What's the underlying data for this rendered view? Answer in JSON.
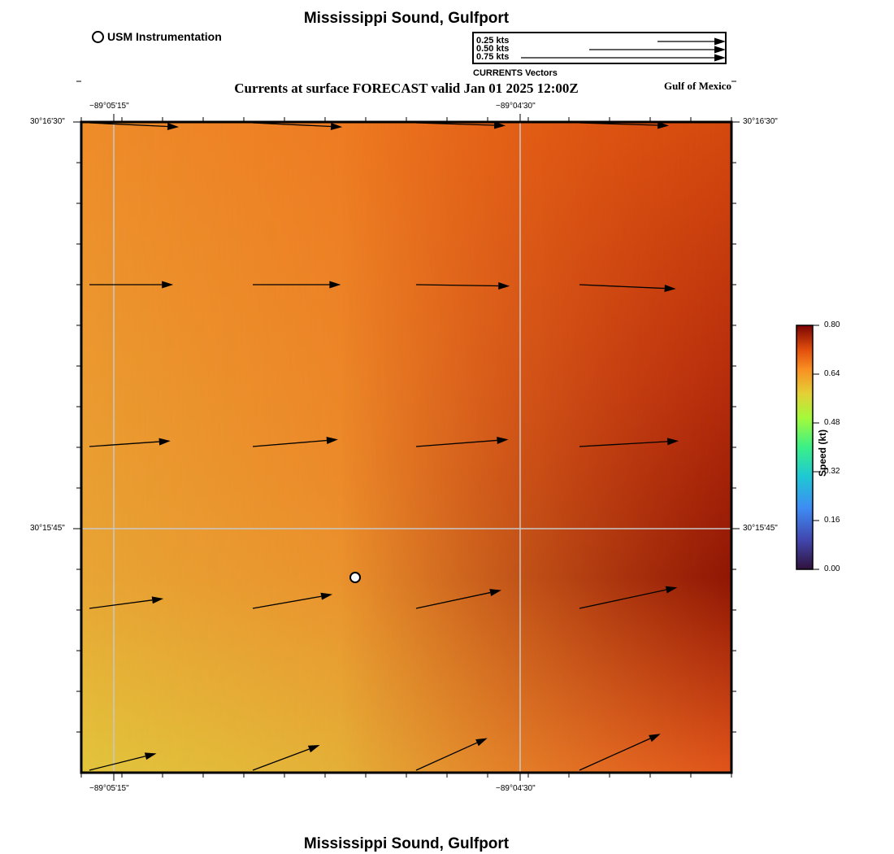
{
  "title": "Mississippi Sound, Gulfport",
  "bottom_title": "Mississippi Sound, Gulfport",
  "subtitle": "Currents at surface FORECAST valid Jan 01 2025 12:00Z",
  "region_label": "Gulf of Mexico",
  "station_legend": {
    "label": "USM Instrumentation",
    "icon": "circle-marker-icon"
  },
  "vector_legend": {
    "caption": "CURRENTS Vectors",
    "entries": [
      {
        "label": "0.25 kts",
        "speed": 0.25
      },
      {
        "label": "0.50 kts",
        "speed": 0.5
      },
      {
        "label": "0.75 kts",
        "speed": 0.75
      }
    ]
  },
  "axes": {
    "lon_ticks": [
      "−89°05'15\"",
      "−89°04'30\""
    ],
    "lat_ticks": [
      "30°16'30\"",
      "30°15'45\""
    ]
  },
  "colorbar": {
    "title": "Speed (kt)",
    "ticks": [
      "0.80",
      "0.64",
      "0.48",
      "0.32",
      "0.16",
      "0.00"
    ],
    "min": 0.0,
    "max": 0.8
  },
  "chart_data": {
    "type": "vector-field",
    "variable": "surface current",
    "units": "kt",
    "rows": [
      {
        "u": [
          0.64,
          0.64,
          0.64,
          0.64
        ],
        "v": [
          -0.03,
          -0.03,
          -0.02,
          -0.02
        ]
      },
      {
        "u": [
          0.6,
          0.63,
          0.67,
          0.69
        ],
        "v": [
          0.0,
          0.0,
          -0.01,
          -0.03
        ]
      },
      {
        "u": [
          0.58,
          0.61,
          0.66,
          0.71
        ],
        "v": [
          0.04,
          0.05,
          0.05,
          0.04
        ]
      },
      {
        "u": [
          0.53,
          0.57,
          0.61,
          0.7
        ],
        "v": [
          0.07,
          0.1,
          0.13,
          0.15
        ]
      },
      {
        "u": [
          0.48,
          0.48,
          0.51,
          0.58
        ],
        "v": [
          0.12,
          0.18,
          0.23,
          0.26
        ]
      }
    ],
    "station": {
      "name": "USM Instrumentation"
    }
  }
}
